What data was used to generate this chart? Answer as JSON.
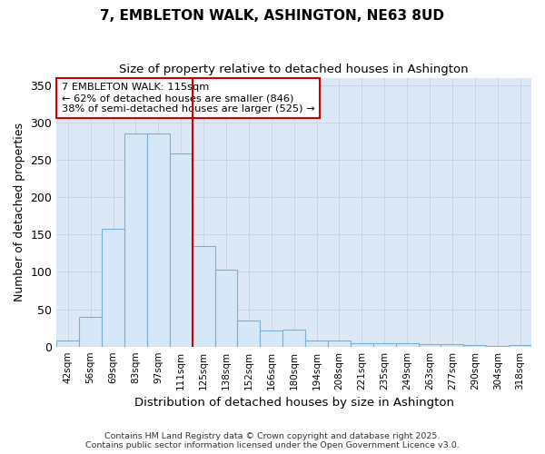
{
  "title": "7, EMBLETON WALK, ASHINGTON, NE63 8UD",
  "subtitle": "Size of property relative to detached houses in Ashington",
  "xlabel": "Distribution of detached houses by size in Ashington",
  "ylabel": "Number of detached properties",
  "categories": [
    "42sqm",
    "56sqm",
    "69sqm",
    "83sqm",
    "97sqm",
    "111sqm",
    "125sqm",
    "138sqm",
    "152sqm",
    "166sqm",
    "180sqm",
    "194sqm",
    "208sqm",
    "221sqm",
    "235sqm",
    "249sqm",
    "263sqm",
    "277sqm",
    "290sqm",
    "304sqm",
    "318sqm"
  ],
  "values": [
    8,
    40,
    158,
    285,
    285,
    258,
    134,
    103,
    35,
    22,
    23,
    8,
    8,
    5,
    5,
    4,
    3,
    3,
    2,
    1,
    2
  ],
  "bar_color": "#d6e8f7",
  "bar_edge_color": "#7ab0d8",
  "vline_x_index": 6,
  "vline_color": "#cc0000",
  "annotation_text": "7 EMBLETON WALK: 115sqm\n← 62% of detached houses are smaller (846)\n38% of semi-detached houses are larger (525) →",
  "annotation_box_color": "#ffffff",
  "annotation_box_edge_color": "#cc0000",
  "ylim": [
    0,
    360
  ],
  "yticks": [
    0,
    50,
    100,
    150,
    200,
    250,
    300,
    350
  ],
  "grid_color": "#c8d4e8",
  "plot_bg_color": "#dce8f5",
  "fig_bg_color": "#ffffff",
  "footer": "Contains HM Land Registry data © Crown copyright and database right 2025.\nContains public sector information licensed under the Open Government Licence v3.0."
}
